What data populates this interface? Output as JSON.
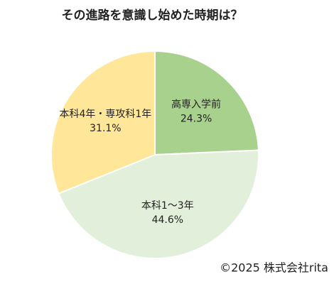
{
  "chart_data": {
    "type": "pie",
    "title": "その進路を意識し始めた時期は？",
    "categories": [
      "高専入学前",
      "本科1～3年",
      "本科4年・専攻科1年"
    ],
    "values": [
      24.3,
      44.6,
      31.1
    ],
    "value_labels": [
      "24.3%",
      "44.6%",
      "31.1%"
    ],
    "colors": [
      "#a9d18e",
      "#e2efda",
      "#ffe699"
    ],
    "source": "©2025 株式会社rita"
  }
}
